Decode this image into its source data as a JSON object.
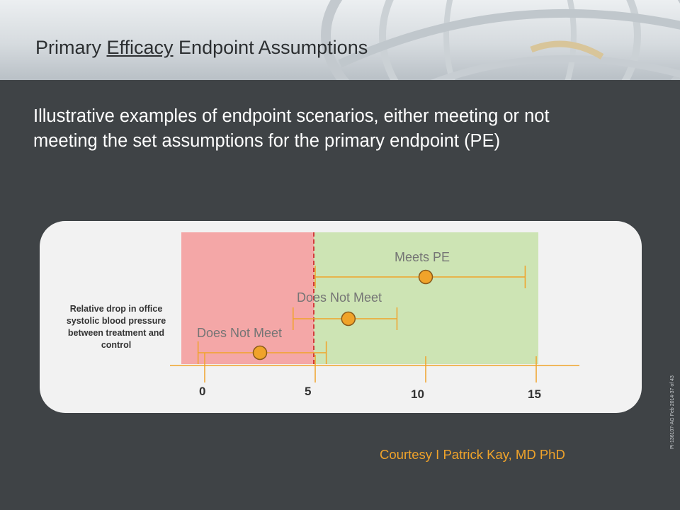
{
  "slide": {
    "title_prefix": "Primary ",
    "title_underlined": "Efficacy",
    "title_suffix": " Endpoint Assumptions",
    "subtitle": "Illustrative examples of endpoint scenarios, either meeting or not meeting the set assumptions for the primary endpoint (PE)",
    "footer": "Courtesy I Patrick Kay, MD PhD",
    "pi_code": "PI-136107-AG Feb 2014-37 of 43"
  },
  "colors": {
    "not_meet_zone": "#f4a7a7",
    "meet_zone": "#cde4b4",
    "threshold_line": "#d23b3b",
    "interval": "#f0a32a",
    "point": "#f0a32a",
    "point_outline": "#8a5a1a"
  },
  "chart_data": {
    "type": "forest",
    "axis_label": "Relative drop in office systolic blood pressure between treatment and control",
    "ticks": [
      0,
      5,
      10,
      15
    ],
    "threshold": 5,
    "zones": [
      {
        "name": "not meeting",
        "from": -1,
        "to": 5
      },
      {
        "name": "meeting",
        "from": 5,
        "to": 15
      }
    ],
    "scenarios": [
      {
        "label": "Meets PE",
        "estimate": 10,
        "lower": 5,
        "upper": 14.5
      },
      {
        "label": "Does Not Meet",
        "estimate": 6.5,
        "lower": 4,
        "upper": 8.7
      },
      {
        "label": "Does Not Meet",
        "estimate": 2.5,
        "lower": -0.3,
        "upper": 5.5
      }
    ]
  }
}
